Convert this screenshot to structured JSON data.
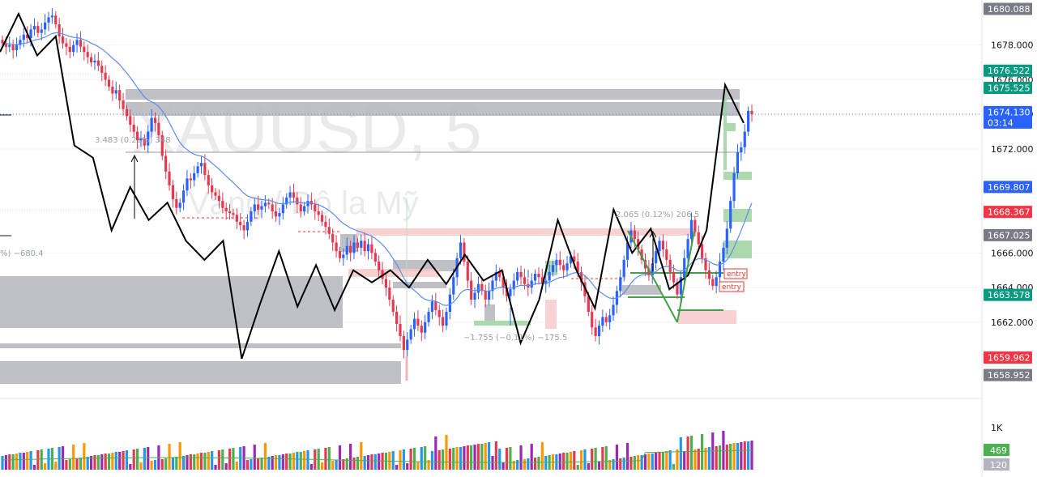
{
  "chart_data": {
    "type": "candlestick",
    "symbol": "XAUUSD",
    "timeframe": "5",
    "watermark_subtitle": "Vàng / Đô la Mỹ",
    "ylim": [
      1657.6,
      1680.6
    ],
    "price_ticks": [
      "1678.000",
      "1676.000",
      "1674.000",
      "1672.000",
      "1666.000",
      "1664.000",
      "1662.000"
    ],
    "price_tags": [
      {
        "label": "1680.088",
        "value": 1680.088,
        "color": "#787b86"
      },
      {
        "label": "1676.522",
        "value": 1676.522,
        "color": "#089981"
      },
      {
        "label": "1675.525",
        "value": 1675.525,
        "color": "#089981"
      },
      {
        "label": "1674.130",
        "sub": "03:14",
        "value": 1674.13,
        "color": "#2962ff"
      },
      {
        "label": "1669.807",
        "value": 1669.807,
        "color": "#2962ff"
      },
      {
        "label": "1668.367",
        "value": 1668.367,
        "color": "#f23645"
      },
      {
        "label": "1667.025",
        "value": 1667.025,
        "color": "#787b86"
      },
      {
        "label": "1663.578",
        "value": 1663.578,
        "color": "#089981"
      },
      {
        "label": "1659.962",
        "value": 1659.962,
        "color": "#f23645"
      },
      {
        "label": "1658.952",
        "value": 1658.952,
        "color": "#787b86"
      }
    ],
    "volume_axis": {
      "tick_label": "1K",
      "tags": [
        {
          "label": "469",
          "color": "#4caf50"
        },
        {
          "label": "120",
          "color": "#b2b5be"
        }
      ]
    },
    "measurements": [
      {
        "text": "3.483 (0.21%) 348",
        "kind": "up"
      },
      {
        "text": "2.065 (0.12%) 206.5",
        "kind": "up"
      },
      {
        "text": "−1.755 (−0.11%) −175.5",
        "kind": "down"
      },
      {
        "text": "%) −680.4",
        "kind": "down"
      }
    ],
    "entry_labels": [
      "entry",
      "entry"
    ],
    "zigzag_swings": [
      1677.6,
      1679.8,
      1677.4,
      1678.5,
      1672.2,
      1671.5,
      1667.3,
      1669.8,
      1667.9,
      1668.9,
      1666.7,
      1665.6,
      1666.7,
      1659.9,
      1663.1,
      1666.1,
      1662.9,
      1665.3,
      1662.7,
      1665.0,
      1664.3,
      1665.0,
      1664.0,
      1665.6,
      1664.2,
      1665.9,
      1664.4,
      1665.0,
      1660.8,
      1663.3,
      1667.9,
      1665.0,
      1662.8,
      1668.5,
      1666.0,
      1667.4,
      1663.9,
      1664.7,
      1667.3,
      1675.7,
      1673.5
    ],
    "candle_closes": [
      1678.1,
      1677.9,
      1678.0,
      1677.7,
      1678.0,
      1678.3,
      1678.6,
      1678.4,
      1678.9,
      1679.1,
      1678.7,
      1678.9,
      1679.3,
      1679.6,
      1679.7,
      1679.2,
      1678.5,
      1678.1,
      1677.9,
      1677.6,
      1678.0,
      1678.3,
      1677.9,
      1677.6,
      1677.3,
      1677.0,
      1677.1,
      1676.8,
      1676.4,
      1676.0,
      1675.6,
      1675.2,
      1675.4,
      1674.8,
      1674.3,
      1673.9,
      1673.4,
      1673.0,
      1672.5,
      1672.6,
      1672.2,
      1673.0,
      1673.8,
      1673.5,
      1672.8,
      1671.6,
      1670.7,
      1669.9,
      1669.1,
      1668.6,
      1668.9,
      1669.6,
      1670.3,
      1670.2,
      1670.6,
      1671.0,
      1671.2,
      1670.5,
      1669.9,
      1669.5,
      1669.3,
      1669.0,
      1668.6,
      1668.4,
      1668.3,
      1668.2,
      1667.8,
      1667.6,
      1667.3,
      1667.8,
      1668.4,
      1668.8,
      1668.5,
      1668.7,
      1668.9,
      1668.8,
      1668.4,
      1668.1,
      1668.3,
      1668.8,
      1669.2,
      1669.5,
      1669.2,
      1668.8,
      1668.4,
      1668.7,
      1669.0,
      1668.8,
      1668.4,
      1668.2,
      1667.8,
      1667.5,
      1667.1,
      1666.6,
      1666.1,
      1665.7,
      1665.9,
      1666.4,
      1666.0,
      1666.6,
      1666.3,
      1666.7,
      1666.1,
      1666.5,
      1666.0,
      1665.5,
      1665.0,
      1664.5,
      1664.0,
      1663.3,
      1662.6,
      1661.9,
      1661.2,
      1660.4,
      1661.0,
      1661.6,
      1662.2,
      1661.8,
      1661.4,
      1662.0,
      1662.6,
      1663.2,
      1662.7,
      1662.3,
      1661.8,
      1662.6,
      1663.6,
      1664.6,
      1665.7,
      1666.6,
      1665.5,
      1664.4,
      1663.3,
      1663.7,
      1664.2,
      1663.8,
      1663.3,
      1663.8,
      1664.4,
      1664.9,
      1664.6,
      1664.0,
      1663.5,
      1663.9,
      1664.4,
      1664.9,
      1664.6,
      1664.2,
      1664.0,
      1664.4,
      1664.8,
      1664.6,
      1664.2,
      1664.4,
      1664.9,
      1665.3,
      1665.6,
      1665.3,
      1665.0,
      1665.4,
      1665.8,
      1665.5,
      1664.9,
      1664.3,
      1663.5,
      1662.6,
      1661.7,
      1661.2,
      1661.8,
      1662.3,
      1662.0,
      1662.4,
      1663.0,
      1663.8,
      1664.6,
      1665.6,
      1666.6,
      1667.3,
      1666.8,
      1666.2,
      1665.6,
      1665.1,
      1664.7,
      1665.4,
      1666.1,
      1666.7,
      1666.2,
      1665.6,
      1664.9,
      1664.3,
      1663.6,
      1664.6,
      1665.7,
      1666.8,
      1667.9,
      1667.2,
      1666.5,
      1665.7,
      1665.0,
      1664.5,
      1664.1,
      1664.6,
      1665.5,
      1666.3,
      1667.4,
      1669.0,
      1670.6,
      1671.8,
      1672.1,
      1673.0,
      1674.2,
      1674.0
    ]
  }
}
